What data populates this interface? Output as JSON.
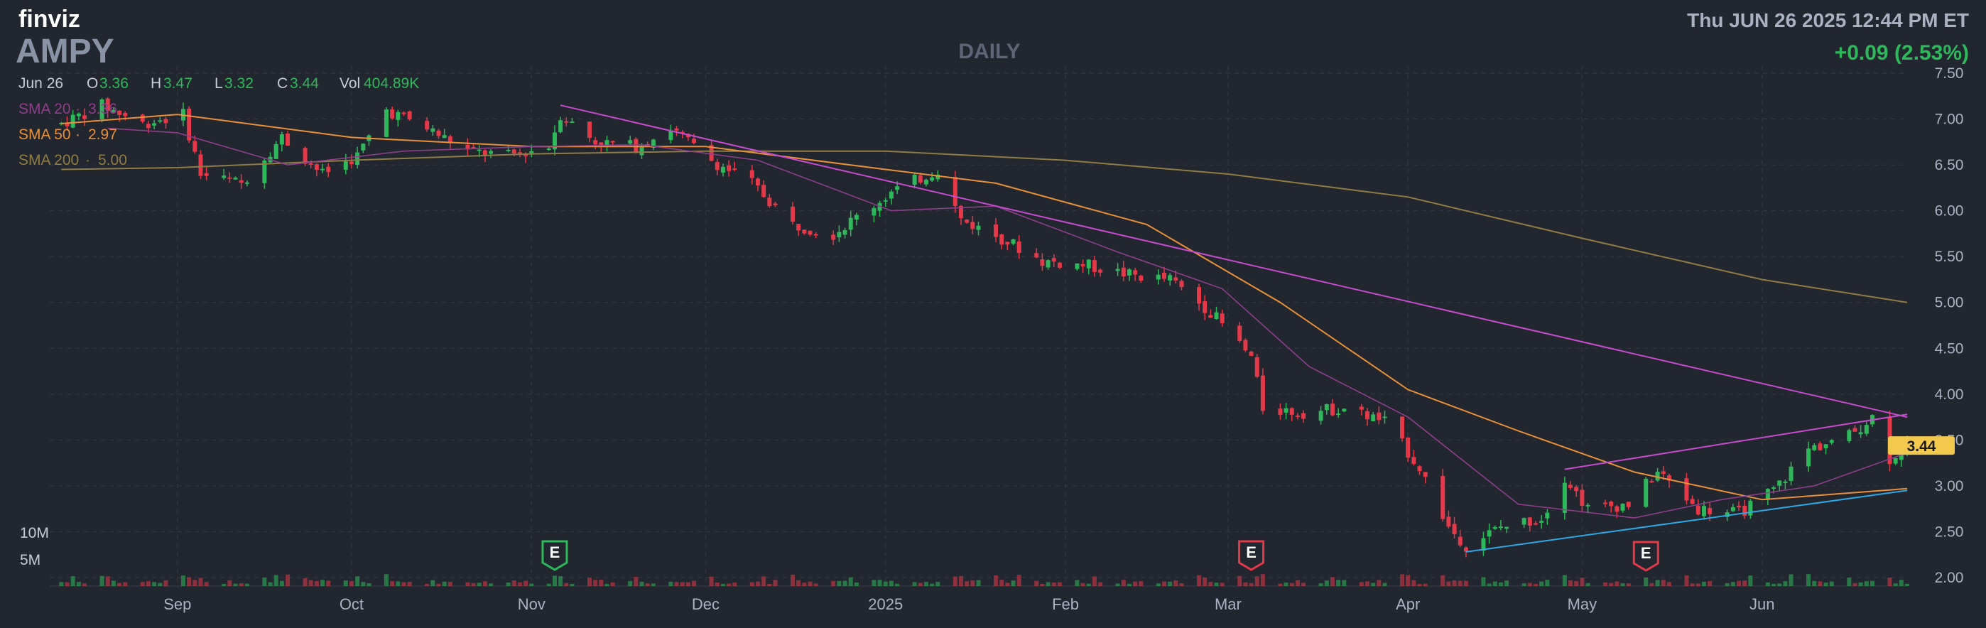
{
  "header": {
    "logo": "finviz",
    "ticker": "AMPY",
    "timeframe": "DAILY",
    "datetime": "Thu JUN 26 2025 12:44 PM ET",
    "change": "+0.09 (2.53%)",
    "ohlc": {
      "date": "Jun 26",
      "o_label": "O",
      "o": "3.36",
      "h_label": "H",
      "h": "3.47",
      "l_label": "L",
      "l": "3.32",
      "c_label": "C",
      "c": "3.44",
      "vol_label": "Vol",
      "vol": "404.89K"
    },
    "legend": [
      {
        "label": "SMA 20",
        "sep": "·",
        "value": "3.36",
        "color": "#8e3f8a"
      },
      {
        "label": "SMA 50",
        "sep": "·",
        "value": "2.97",
        "color": "#e8913a"
      },
      {
        "label": "SMA 200",
        "sep": "·",
        "value": "5.00",
        "color": "#8f7c45"
      }
    ]
  },
  "colors": {
    "background": "#22262f",
    "up": "#2fb85b",
    "down": "#e5394a",
    "sma20": "#8e3f8a",
    "sma50": "#e8913a",
    "sma200": "#8f7c45",
    "trendline_upper": "#c64ccf",
    "trendline_lower": "#2ea8e6",
    "price_tag": "#f2c94c"
  },
  "chart_data": {
    "type": "candlestick",
    "ylim": [
      2.0,
      7.5
    ],
    "y_ticks": [
      "7.50",
      "7.00",
      "6.50",
      "6.00",
      "5.50",
      "5.00",
      "4.50",
      "4.00",
      "3.50",
      "3.00",
      "2.50",
      "2.00"
    ],
    "x_ticks": [
      {
        "label": "Sep",
        "date": "2024-09-01"
      },
      {
        "label": "Oct",
        "date": "2024-10-01"
      },
      {
        "label": "Nov",
        "date": "2024-11-01"
      },
      {
        "label": "Dec",
        "date": "2024-12-01"
      },
      {
        "label": "2025",
        "date": "2025-01-01"
      },
      {
        "label": "Feb",
        "date": "2025-02-01"
      },
      {
        "label": "Mar",
        "date": "2025-03-01"
      },
      {
        "label": "Apr",
        "date": "2025-04-01"
      },
      {
        "label": "May",
        "date": "2025-05-01"
      },
      {
        "label": "Jun",
        "date": "2025-06-01"
      }
    ],
    "date_range": [
      "2024-08-10",
      "2025-06-26"
    ],
    "last_price": "3.44",
    "volume_labels": [
      {
        "label": "10M",
        "value": 10000000
      },
      {
        "label": "5M",
        "value": 5000000
      }
    ],
    "earnings": [
      {
        "label": "E",
        "date": "2024-11-05",
        "kind": "positive"
      },
      {
        "label": "E",
        "date": "2025-03-05",
        "kind": "negative"
      },
      {
        "label": "E",
        "date": "2025-05-12",
        "kind": "negative"
      }
    ],
    "price_path": [
      [
        "2024-08-12",
        6.95
      ],
      [
        "2024-08-19",
        7.15
      ],
      [
        "2024-08-26",
        6.95
      ],
      [
        "2024-09-02",
        7.05
      ],
      [
        "2024-09-05",
        6.4
      ],
      [
        "2024-09-12",
        6.3
      ],
      [
        "2024-09-19",
        6.8
      ],
      [
        "2024-09-26",
        6.4
      ],
      [
        "2024-10-02",
        6.6
      ],
      [
        "2024-10-07",
        7.1
      ],
      [
        "2024-10-14",
        6.9
      ],
      [
        "2024-10-21",
        6.65
      ],
      [
        "2024-10-28",
        6.6
      ],
      [
        "2024-11-04",
        6.7
      ],
      [
        "2024-11-06",
        7.05
      ],
      [
        "2024-11-12",
        6.75
      ],
      [
        "2024-11-19",
        6.7
      ],
      [
        "2024-11-25",
        6.9
      ],
      [
        "2024-12-02",
        6.55
      ],
      [
        "2024-12-09",
        6.3
      ],
      [
        "2024-12-16",
        5.85
      ],
      [
        "2024-12-23",
        5.75
      ],
      [
        "2025-01-02",
        6.2
      ],
      [
        "2025-01-10",
        6.45
      ],
      [
        "2025-01-14",
        5.9
      ],
      [
        "2025-01-21",
        5.7
      ],
      [
        "2025-01-28",
        5.45
      ],
      [
        "2025-02-05",
        5.4
      ],
      [
        "2025-02-12",
        5.3
      ],
      [
        "2025-02-19",
        5.25
      ],
      [
        "2025-02-26",
        4.9
      ],
      [
        "2025-03-05",
        4.4
      ],
      [
        "2025-03-07",
        3.85
      ],
      [
        "2025-03-14",
        3.8
      ],
      [
        "2025-03-21",
        3.85
      ],
      [
        "2025-03-28",
        3.7
      ],
      [
        "2025-04-03",
        3.2
      ],
      [
        "2025-04-08",
        2.55
      ],
      [
        "2025-04-11",
        2.35
      ],
      [
        "2025-04-17",
        2.55
      ],
      [
        "2025-04-24",
        2.65
      ],
      [
        "2025-04-28",
        3.1
      ],
      [
        "2025-05-02",
        2.75
      ],
      [
        "2025-05-09",
        2.8
      ],
      [
        "2025-05-14",
        3.15
      ],
      [
        "2025-05-21",
        2.75
      ],
      [
        "2025-05-28",
        2.7
      ],
      [
        "2025-06-03",
        2.95
      ],
      [
        "2025-06-09",
        3.4
      ],
      [
        "2025-06-16",
        3.55
      ],
      [
        "2025-06-20",
        3.75
      ],
      [
        "2025-06-23",
        3.3
      ],
      [
        "2025-06-26",
        3.44
      ]
    ],
    "sma20_path": [
      [
        "2024-08-20",
        6.9
      ],
      [
        "2024-09-01",
        6.85
      ],
      [
        "2024-09-20",
        6.5
      ],
      [
        "2024-10-10",
        6.65
      ],
      [
        "2024-11-01",
        6.7
      ],
      [
        "2024-11-20",
        6.72
      ],
      [
        "2024-12-10",
        6.55
      ],
      [
        "2025-01-02",
        6.0
      ],
      [
        "2025-01-20",
        6.05
      ],
      [
        "2025-02-10",
        5.55
      ],
      [
        "2025-02-28",
        5.15
      ],
      [
        "2025-03-15",
        4.3
      ],
      [
        "2025-04-01",
        3.75
      ],
      [
        "2025-04-20",
        2.8
      ],
      [
        "2025-05-10",
        2.65
      ],
      [
        "2025-05-25",
        2.85
      ],
      [
        "2025-06-10",
        3.0
      ],
      [
        "2025-06-26",
        3.36
      ]
    ],
    "sma50_path": [
      [
        "2024-08-12",
        6.95
      ],
      [
        "2024-09-01",
        7.05
      ],
      [
        "2024-10-01",
        6.8
      ],
      [
        "2024-11-01",
        6.7
      ],
      [
        "2024-12-01",
        6.7
      ],
      [
        "2025-01-01",
        6.45
      ],
      [
        "2025-01-20",
        6.3
      ],
      [
        "2025-02-15",
        5.85
      ],
      [
        "2025-03-10",
        5.0
      ],
      [
        "2025-04-01",
        4.05
      ],
      [
        "2025-04-20",
        3.6
      ],
      [
        "2025-05-10",
        3.15
      ],
      [
        "2025-06-01",
        2.85
      ],
      [
        "2025-06-26",
        2.97
      ]
    ],
    "sma200_path": [
      [
        "2024-08-12",
        6.45
      ],
      [
        "2024-09-01",
        6.47
      ],
      [
        "2024-10-01",
        6.55
      ],
      [
        "2024-11-01",
        6.62
      ],
      [
        "2024-12-01",
        6.65
      ],
      [
        "2025-01-01",
        6.65
      ],
      [
        "2025-02-01",
        6.55
      ],
      [
        "2025-03-01",
        6.4
      ],
      [
        "2025-04-01",
        6.15
      ],
      [
        "2025-05-01",
        5.7
      ],
      [
        "2025-06-01",
        5.25
      ],
      [
        "2025-06-26",
        5.0
      ]
    ],
    "trendlines": [
      {
        "name": "upper-downtrend",
        "color": "#c64ccf",
        "from": [
          "2024-11-06",
          7.15
        ],
        "to": [
          "2025-06-26",
          3.75
        ]
      },
      {
        "name": "upper-channel",
        "color": "#c64ccf",
        "from": [
          "2025-04-28",
          3.18
        ],
        "to": [
          "2025-06-26",
          3.78
        ]
      },
      {
        "name": "lower-support",
        "color": "#2ea8e6",
        "from": [
          "2025-04-11",
          2.28
        ],
        "to": [
          "2025-06-26",
          2.95
        ]
      }
    ]
  }
}
